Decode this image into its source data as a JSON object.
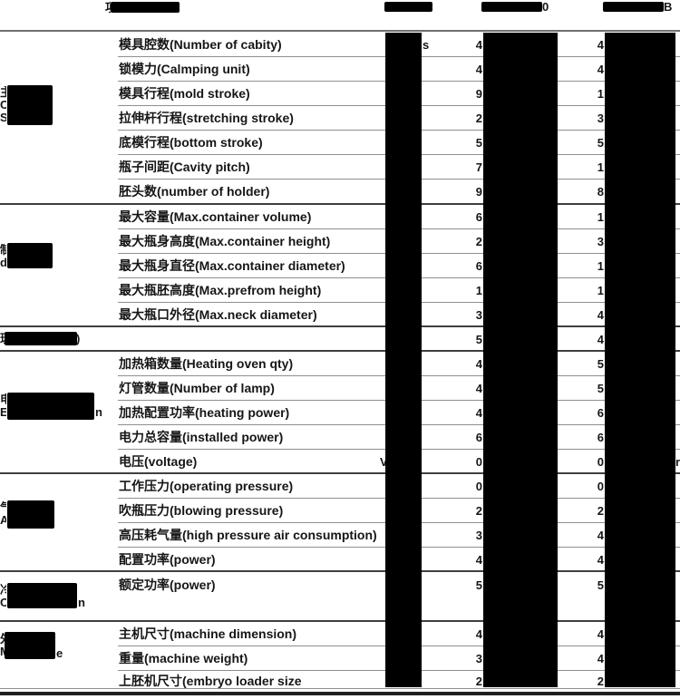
{
  "header": {
    "item_fragment": "项",
    "model2_trailing": "0",
    "model3_trailing": "B"
  },
  "sections": [
    {
      "id": "clamping-system",
      "fragments": [
        "主",
        "C",
        "S"
      ],
      "trailing": ""
    },
    {
      "id": "product-dimension",
      "fragments": [
        "制",
        "d"
      ],
      "trailing": ""
    },
    {
      "id": "electrical-section",
      "fragments": [
        "电",
        "E"
      ],
      "trailing": "n"
    },
    {
      "id": "air-section",
      "fragments": [
        "气",
        "A"
      ],
      "trailing": ""
    },
    {
      "id": "chiller-section",
      "fragments": [
        "冷",
        "C"
      ],
      "trailing": "n"
    },
    {
      "id": "machine-size",
      "fragments": [
        "外",
        "M"
      ],
      "trailing": "e"
    }
  ],
  "rows": [
    {
      "label": "模具腔数(Number of cabity)",
      "c1_after": "s",
      "c2": "4",
      "c3": "4"
    },
    {
      "label": "锁模力(Calmping unit)",
      "c2": "4",
      "c3": "4"
    },
    {
      "label": "模具行程(mold stroke)",
      "c2": "9",
      "c3": "1"
    },
    {
      "label": "拉伸杆行程(stretching stroke)",
      "c2": "2",
      "c3": "3"
    },
    {
      "label": "底模行程(bottom stroke)",
      "c2": "5",
      "c3": "5"
    },
    {
      "label": "瓶子间距(Cavity pitch)",
      "c2": "7",
      "c3": "1"
    },
    {
      "label": "胚头数(number of holder)",
      "c2": "9",
      "c3": "8"
    },
    {
      "label": "最大容量(Max.container volume)",
      "c2": "6",
      "c3": "1"
    },
    {
      "label": "最大瓶身高度(Max.container height)",
      "c2": "2",
      "c3": "3"
    },
    {
      "label": "最大瓶身直径(Max.container diameter)",
      "c2": "6",
      "c3": "1"
    },
    {
      "label": "最大瓶胚高度(Max.prefrom height)",
      "c2": "1",
      "c3": "1"
    },
    {
      "label": "最大瓶口外径(Max.neck diameter)",
      "c2": "3",
      "c3": "4"
    },
    {
      "label": "",
      "redacted_label": true,
      "label_fragment": "理",
      "label_trailing": ")",
      "c2": "5",
      "c3": "4"
    },
    {
      "label": "加热箱数量(Heating oven qty)",
      "c2": "4",
      "c3": "5"
    },
    {
      "label": "灯管数量(Number of lamp)",
      "c2": "4",
      "c3": "5"
    },
    {
      "label": "加热配置功率(heating power)",
      "c2": "4",
      "c3": "6"
    },
    {
      "label": "电力总容量(installed power)",
      "c2": "6",
      "c3": "6"
    },
    {
      "label": "电压(voltage)",
      "c1_before": "V",
      "c2": "0",
      "c3": "0",
      "c3_after": "r"
    },
    {
      "label": "工作压力(operating pressure)",
      "c2": "0",
      "c3": "0"
    },
    {
      "label": "吹瓶压力(blowing pressure)",
      "c2": "2",
      "c3": "2"
    },
    {
      "label": "高压耗气量(high pressure air consumption)",
      "c2": "3",
      "c3": "4"
    },
    {
      "label": "配置功率(power)",
      "c2": "4",
      "c3": "4"
    },
    {
      "label": "额定功率(power)",
      "tall": true,
      "c2": "5",
      "c3": "5"
    },
    {
      "label": "主机尺寸(machine dimension)",
      "c2": "4",
      "c3": "4"
    },
    {
      "label": "重量(machine weight)",
      "c2": "3",
      "c3": "4"
    },
    {
      "label": "上胚机尺寸(embryo loader size",
      "c2": "2",
      "c3": "2"
    }
  ],
  "colors": {
    "background": "#ffffff",
    "text": "#161616",
    "redaction": "#000000",
    "line_light": "#8f8f8f",
    "line_dark": "#3f3f3f"
  }
}
